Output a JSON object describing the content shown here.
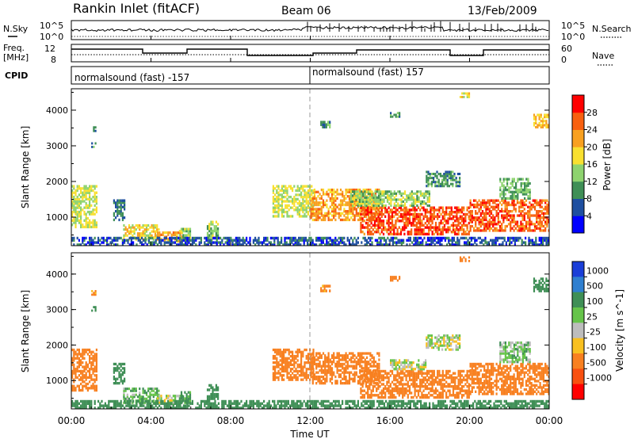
{
  "header": {
    "station": "Rankin Inlet (fitACF)",
    "beam": "Beam 06",
    "date": "13/Feb/2009"
  },
  "top_panels": {
    "nsky_label": "N.Sky",
    "nsky_tick_hi": "10^5",
    "nsky_tick_lo": "10^0",
    "nsearch_label": "N.Search",
    "nsearch_tick_hi": "10^5",
    "nsearch_tick_lo": "10^0",
    "freq_label_1": "Freq.",
    "freq_label_2": "[MHz]",
    "freq_tick_hi": "12",
    "freq_tick_lo": "8",
    "nave_label": "Nave",
    "nave_tick_hi": "60",
    "nave_tick_lo": "0",
    "cpid_label": "CPID",
    "cpid_1": "normalsound (fast) -157",
    "cpid_2": "normalsound (fast) 157"
  },
  "x_axis": {
    "ticks": [
      "00:00",
      "04:00",
      "08:00",
      "12:00",
      "16:00",
      "20:00",
      "00:00"
    ],
    "label": "Time UT"
  },
  "colors": {
    "power_scale": [
      "#0000ff",
      "#1e4fa0",
      "#3f8f56",
      "#8ed36f",
      "#f8e030",
      "#f8a020",
      "#f86010",
      "#ff0000"
    ],
    "velocity_scale": [
      "#1a3ed8",
      "#2f7fd0",
      "#3f8f56",
      "#66c44a",
      "#bdbdbd",
      "#f8c020",
      "#f88020",
      "#f85010",
      "#ff0000"
    ]
  },
  "chart_data": [
    {
      "type": "heatmap",
      "name": "power",
      "xlabel": "",
      "ylabel": "Slant Range [km]",
      "xlim": [
        0,
        24
      ],
      "ylim": [
        200,
        4600
      ],
      "yticks": [
        "1000",
        "2000",
        "3000",
        "4000"
      ],
      "colorbar": {
        "label": "Power [dB]",
        "ticks": [
          "4",
          "8",
          "12",
          "16",
          "20",
          "24",
          "28"
        ],
        "range": [
          0,
          32
        ]
      },
      "regions": [
        {
          "t0": 0.0,
          "t1": 1.3,
          "r0": 700,
          "r1": 1900,
          "v": 16
        },
        {
          "t0": 2.1,
          "t1": 2.7,
          "r0": 900,
          "r1": 1500,
          "v": 8
        },
        {
          "t0": 2.6,
          "t1": 4.4,
          "r0": 350,
          "r1": 800,
          "v": 18
        },
        {
          "t0": 4.3,
          "t1": 5.6,
          "r0": 300,
          "r1": 600,
          "v": 22
        },
        {
          "t0": 5.4,
          "t1": 6.0,
          "r0": 350,
          "r1": 700,
          "v": 14
        },
        {
          "t0": 6.8,
          "t1": 7.4,
          "r0": 400,
          "r1": 900,
          "v": 14
        },
        {
          "t0": 10.1,
          "t1": 12.2,
          "r0": 1000,
          "r1": 1900,
          "v": 16
        },
        {
          "t0": 12.0,
          "t1": 15.5,
          "r0": 900,
          "r1": 1800,
          "v": 22
        },
        {
          "t0": 14.5,
          "t1": 20.0,
          "r0": 500,
          "r1": 1300,
          "v": 27
        },
        {
          "t0": 14.0,
          "t1": 18.0,
          "r0": 1300,
          "r1": 1750,
          "v": 14
        },
        {
          "t0": 17.8,
          "t1": 19.5,
          "r0": 1850,
          "r1": 2300,
          "v": 10
        },
        {
          "t0": 20.0,
          "t1": 24.0,
          "r0": 600,
          "r1": 1500,
          "v": 26
        },
        {
          "t0": 21.5,
          "t1": 23.0,
          "r0": 1500,
          "r1": 2100,
          "v": 12
        },
        {
          "t0": 12.5,
          "t1": 13.0,
          "r0": 3500,
          "r1": 3700,
          "v": 10
        },
        {
          "t0": 16.0,
          "t1": 16.5,
          "r0": 3800,
          "r1": 3950,
          "v": 10
        },
        {
          "t0": 23.2,
          "t1": 24.0,
          "r0": 3500,
          "r1": 3900,
          "v": 20
        },
        {
          "t0": 1.0,
          "t1": 1.2,
          "r0": 2950,
          "r1": 3100,
          "v": 10
        },
        {
          "t0": 1.0,
          "t1": 1.2,
          "r0": 3400,
          "r1": 3550,
          "v": 8
        },
        {
          "t0": 0.0,
          "t1": 24.0,
          "r0": 200,
          "r1": 450,
          "v": 6
        },
        {
          "t0": 19.5,
          "t1": 20.0,
          "r0": 4350,
          "r1": 4500,
          "v": 18
        }
      ]
    },
    {
      "type": "heatmap",
      "name": "velocity",
      "xlabel": "Time UT",
      "ylabel": "Slant Range [km]",
      "xlim": [
        0,
        24
      ],
      "ylim": [
        200,
        4600
      ],
      "yticks": [
        "1000",
        "2000",
        "3000",
        "4000"
      ],
      "colorbar": {
        "label": "Velocity [m s^-1]",
        "ticks": [
          "1000",
          "500",
          "100",
          "25",
          "-25",
          "-100",
          "-500",
          "-1000"
        ]
      },
      "regions": [
        {
          "t0": 0.0,
          "t1": 1.3,
          "r0": 700,
          "r1": 1900,
          "v": -300
        },
        {
          "t0": 2.1,
          "t1": 2.7,
          "r0": 900,
          "r1": 1500,
          "v": 200
        },
        {
          "t0": 2.6,
          "t1": 4.4,
          "r0": 350,
          "r1": 800,
          "v": 80
        },
        {
          "t0": 4.3,
          "t1": 5.6,
          "r0": 300,
          "r1": 600,
          "v": 10
        },
        {
          "t0": 5.4,
          "t1": 6.0,
          "r0": 350,
          "r1": 700,
          "v": 150
        },
        {
          "t0": 6.8,
          "t1": 7.4,
          "r0": 400,
          "r1": 900,
          "v": 400
        },
        {
          "t0": 10.1,
          "t1": 12.2,
          "r0": 1000,
          "r1": 1900,
          "v": -200
        },
        {
          "t0": 12.0,
          "t1": 15.5,
          "r0": 900,
          "r1": 1800,
          "v": -300
        },
        {
          "t0": 14.5,
          "t1": 20.0,
          "r0": 500,
          "r1": 1300,
          "v": -300
        },
        {
          "t0": 16.0,
          "t1": 17.8,
          "r0": 1300,
          "r1": 1600,
          "v": 0
        },
        {
          "t0": 17.8,
          "t1": 19.5,
          "r0": 1850,
          "r1": 2300,
          "v": 0
        },
        {
          "t0": 20.0,
          "t1": 24.0,
          "r0": 600,
          "r1": 1500,
          "v": -300
        },
        {
          "t0": 21.5,
          "t1": 23.0,
          "r0": 1500,
          "r1": 2100,
          "v": 50
        },
        {
          "t0": 12.5,
          "t1": 13.0,
          "r0": 3500,
          "r1": 3700,
          "v": -150
        },
        {
          "t0": 16.0,
          "t1": 16.5,
          "r0": 3800,
          "r1": 3950,
          "v": -300
        },
        {
          "t0": 23.2,
          "t1": 24.0,
          "r0": 3500,
          "r1": 3900,
          "v": 300
        },
        {
          "t0": 1.0,
          "t1": 1.2,
          "r0": 2950,
          "r1": 3100,
          "v": 300
        },
        {
          "t0": 1.0,
          "t1": 1.2,
          "r0": 3400,
          "r1": 3550,
          "v": -150
        },
        {
          "t0": 0.0,
          "t1": 24.0,
          "r0": 200,
          "r1": 450,
          "v": 300
        },
        {
          "t0": 19.5,
          "t1": 20.0,
          "r0": 4350,
          "r1": 4500,
          "v": -300
        }
      ]
    }
  ]
}
